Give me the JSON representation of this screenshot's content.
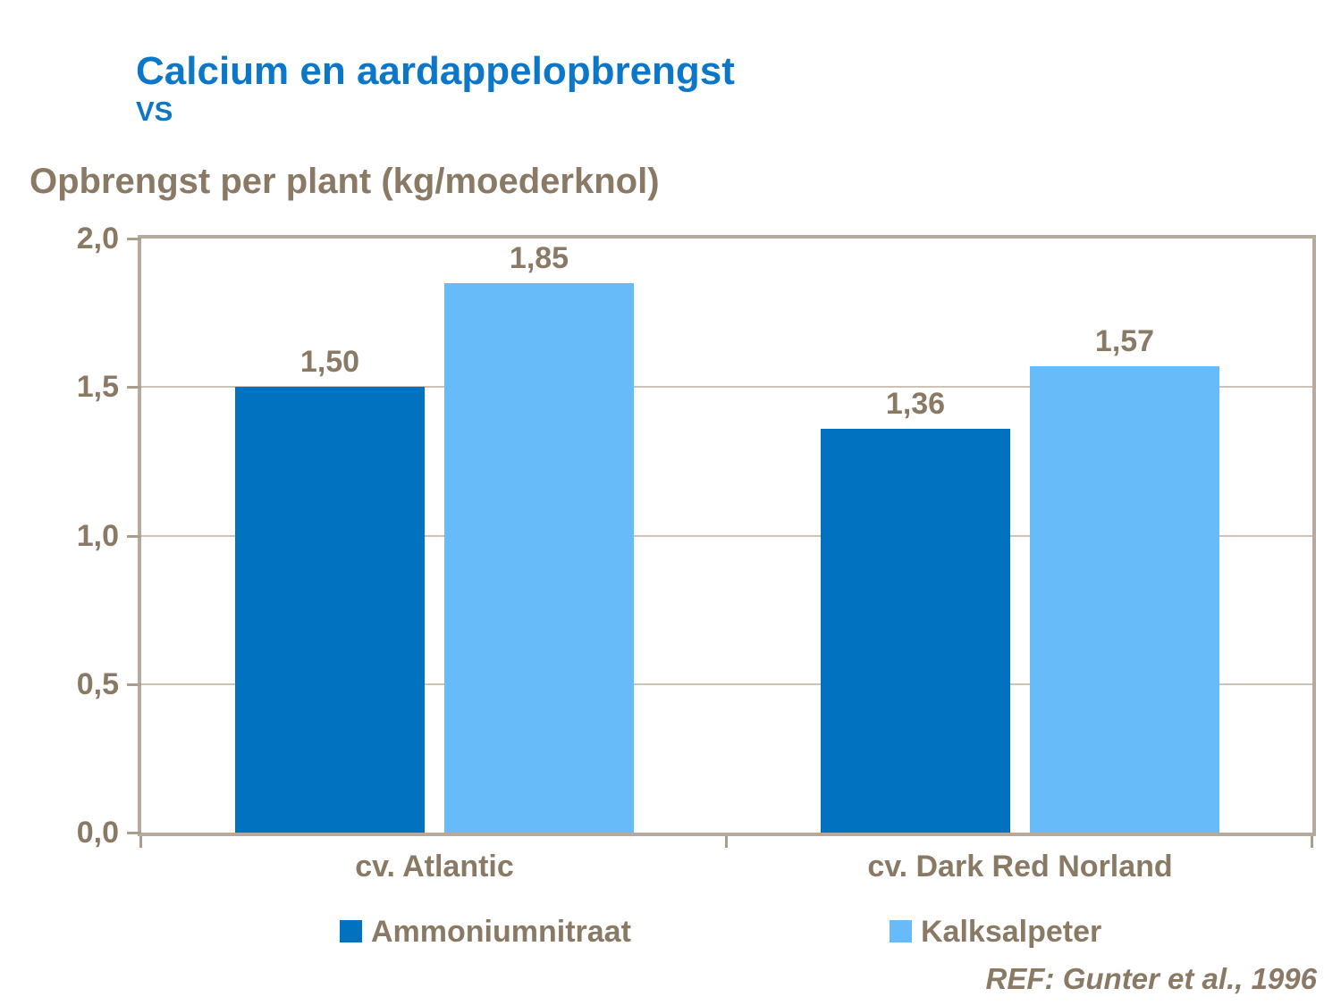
{
  "header": {
    "title": "Calcium en aardappelopbrengst",
    "subtitle": "VS",
    "axis_title": "Opbrengst per plant (kg/moederknol)"
  },
  "reference_note": "REF: Gunter et al., 1996",
  "colors": {
    "title_blue": "#0C77C8",
    "text_taupe": "#8A7A65",
    "series1_dark_blue": "#0072BF",
    "series2_light_blue": "#66BBF8",
    "plot_border_tan": "#B5AA9D",
    "gridline_tan": "#CCC3B6",
    "tick_tan": "#A99E90"
  },
  "chart_data": {
    "type": "bar",
    "title": "Calcium en aardappelopbrengst",
    "ylabel": "Opbrengst per plant (kg/moederknol)",
    "xlabel": "",
    "ylim": [
      0,
      2
    ],
    "grid": true,
    "legend_position": "bottom",
    "categories": [
      "cv. Atlantic",
      "cv. Dark Red Norland"
    ],
    "series": [
      {
        "name": "Ammoniumnitraat",
        "color": "#0072BF",
        "values": [
          1.5,
          1.36
        ],
        "labels": [
          "1,50",
          "1,36"
        ]
      },
      {
        "name": "Kalksalpeter",
        "color": "#66BBF8",
        "values": [
          1.85,
          1.57
        ],
        "labels": [
          "1,85",
          "1,57"
        ]
      }
    ],
    "yticks": [
      {
        "value": 0.0,
        "label": "0,0"
      },
      {
        "value": 0.5,
        "label": "0,5"
      },
      {
        "value": 1.0,
        "label": "1,0"
      },
      {
        "value": 1.5,
        "label": "1,5"
      },
      {
        "value": 2.0,
        "label": "2,0"
      }
    ],
    "gridline_values": [
      0.5,
      1.0,
      1.5
    ]
  }
}
